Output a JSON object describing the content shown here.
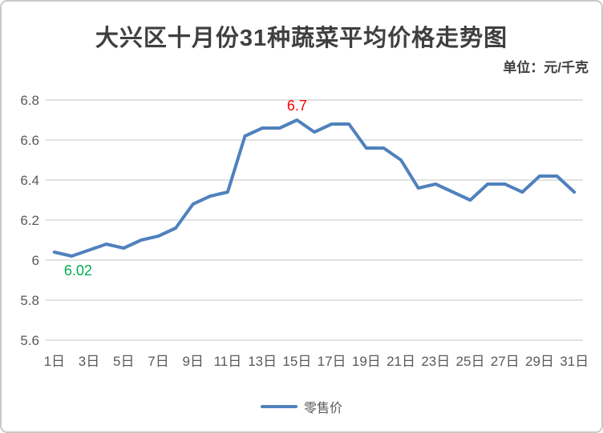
{
  "card": {
    "background": "#ffffff",
    "border_color": "#c9c9c9"
  },
  "chart_data": {
    "type": "line",
    "title": "大兴区十月份31种蔬菜平均价格走势图",
    "unit_label": "单位：元/千克",
    "xlabel": "",
    "ylabel": "",
    "ylim": [
      5.6,
      6.8
    ],
    "grid": true,
    "grid_color": "#d9d9d9",
    "axis_text_color": "#595959",
    "y_ticks": [
      {
        "value": 6.8,
        "label": "6.8"
      },
      {
        "value": 6.6,
        "label": "6.6"
      },
      {
        "value": 6.4,
        "label": "6.4"
      },
      {
        "value": 6.2,
        "label": "6.2"
      },
      {
        "value": 6.0,
        "label": "6"
      },
      {
        "value": 5.8,
        "label": "5.8"
      },
      {
        "value": 5.6,
        "label": "5.6"
      }
    ],
    "x_ticks": [
      {
        "day": 1,
        "label": "1日"
      },
      {
        "day": 3,
        "label": "3日"
      },
      {
        "day": 5,
        "label": "5日"
      },
      {
        "day": 7,
        "label": "7日"
      },
      {
        "day": 9,
        "label": "9日"
      },
      {
        "day": 11,
        "label": "11日"
      },
      {
        "day": 13,
        "label": "13日"
      },
      {
        "day": 15,
        "label": "15日"
      },
      {
        "day": 17,
        "label": "17日"
      },
      {
        "day": 19,
        "label": "19日"
      },
      {
        "day": 21,
        "label": "21日"
      },
      {
        "day": 23,
        "label": "23日"
      },
      {
        "day": 25,
        "label": "25日"
      },
      {
        "day": 27,
        "label": "27日"
      },
      {
        "day": 29,
        "label": "29日"
      },
      {
        "day": 31,
        "label": "31日"
      }
    ],
    "categories": [
      1,
      2,
      3,
      4,
      5,
      6,
      7,
      8,
      9,
      10,
      11,
      12,
      13,
      14,
      15,
      16,
      17,
      18,
      19,
      20,
      21,
      22,
      23,
      24,
      25,
      26,
      27,
      28,
      29,
      30,
      31
    ],
    "series": [
      {
        "name": "零售价",
        "color": "#4F81BD",
        "values": [
          6.04,
          6.02,
          6.05,
          6.08,
          6.06,
          6.1,
          6.12,
          6.16,
          6.28,
          6.32,
          6.34,
          6.62,
          6.66,
          6.66,
          6.7,
          6.64,
          6.68,
          6.68,
          6.56,
          6.56,
          6.5,
          6.36,
          6.38,
          6.34,
          6.3,
          6.38,
          6.38,
          6.34,
          6.42,
          6.42,
          6.34
        ]
      }
    ],
    "annotations": [
      {
        "day": 2,
        "label": "6.02",
        "color": "#00B050",
        "placement": "below"
      },
      {
        "day": 15,
        "label": "6.7",
        "color": "#FF0000",
        "placement": "above"
      }
    ],
    "legend": {
      "position": "bottom"
    }
  }
}
